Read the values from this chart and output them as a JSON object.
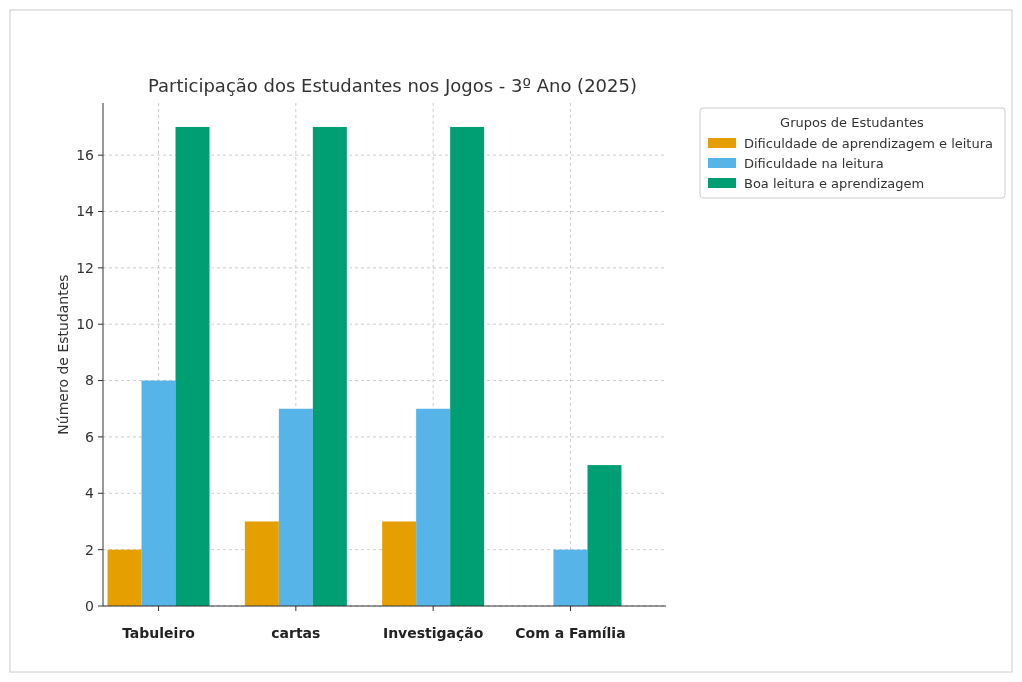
{
  "chart_data": {
    "type": "bar",
    "title": "Participação dos Estudantes nos Jogos - 3º Ano (2025)",
    "ylabel": "Número de Estudantes",
    "legend_title": "Grupos de Estudantes",
    "categories": [
      "Tabuleiro",
      "cartas",
      "Investigação",
      "Com a Família"
    ],
    "series": [
      {
        "name": "Dificuldade de aprendizagem e leitura",
        "color": "#e69f00",
        "values": [
          2,
          3,
          3,
          0
        ]
      },
      {
        "name": "Dificuldade na leitura",
        "color": "#56b4e9",
        "values": [
          8,
          7,
          7,
          2
        ]
      },
      {
        "name": "Boa leitura e aprendizagem",
        "color": "#009e73",
        "values": [
          17,
          17,
          17,
          5
        ]
      }
    ],
    "ylim": [
      0,
      17.85
    ],
    "yticks": [
      0,
      2,
      4,
      6,
      8,
      10,
      12,
      14,
      16
    ],
    "grid": true,
    "legend": "top right"
  }
}
